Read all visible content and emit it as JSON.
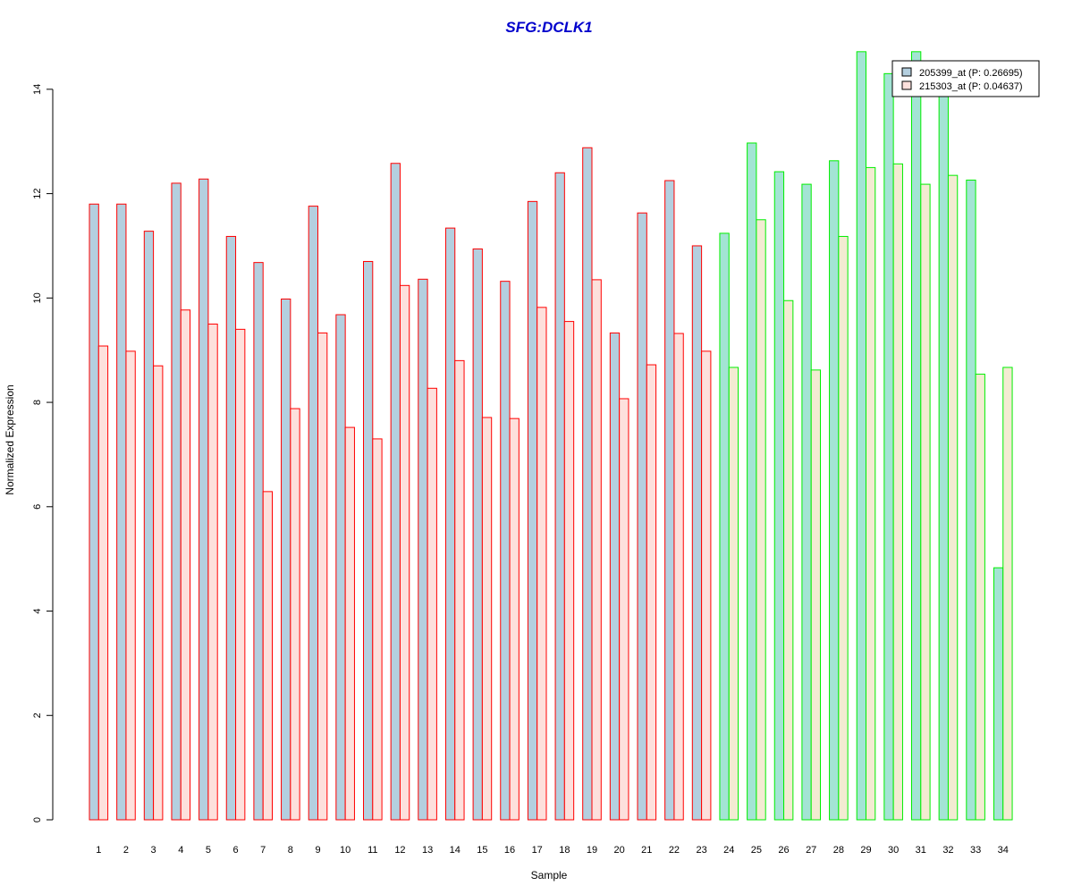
{
  "chart_data": {
    "type": "bar",
    "title": "SFG:DCLK1",
    "xlabel": "Sample",
    "ylabel": "Normalized Expression",
    "ylim": [
      0,
      14.7
    ],
    "yticks": [
      0,
      2,
      4,
      6,
      8,
      10,
      12,
      14
    ],
    "categories": [
      "1",
      "2",
      "3",
      "4",
      "5",
      "6",
      "7",
      "8",
      "9",
      "10",
      "11",
      "12",
      "13",
      "14",
      "15",
      "16",
      "17",
      "18",
      "19",
      "20",
      "21",
      "22",
      "23",
      "24",
      "25",
      "26",
      "27",
      "28",
      "29",
      "30",
      "31",
      "32",
      "33",
      "34"
    ],
    "group_split_after": 23,
    "series": [
      {
        "name": "205399_at (P: 0.26695)",
        "values": [
          11.8,
          11.8,
          11.28,
          12.2,
          12.28,
          11.18,
          10.68,
          9.98,
          11.76,
          9.68,
          10.7,
          12.58,
          10.36,
          11.34,
          10.94,
          10.32,
          11.85,
          12.4,
          12.88,
          9.33,
          11.63,
          12.25,
          11.0,
          11.24,
          12.97,
          12.42,
          12.18,
          12.63,
          14.72,
          14.3,
          14.72,
          14.0,
          12.26,
          4.83
        ]
      },
      {
        "name": "215303_at (P: 0.04637)",
        "values": [
          9.08,
          8.98,
          8.7,
          9.77,
          9.5,
          9.4,
          6.29,
          7.88,
          9.33,
          7.52,
          7.3,
          10.24,
          8.27,
          8.8,
          7.71,
          7.69,
          9.82,
          9.55,
          10.35,
          8.07,
          8.72,
          9.32,
          8.98,
          8.67,
          11.5,
          9.95,
          8.62,
          11.18,
          12.5,
          12.57,
          12.18,
          12.35,
          8.54,
          8.67
        ]
      }
    ],
    "colors": {
      "title": "#0000cc",
      "group1_outline": "#ff0000",
      "group2_outline": "#00ee00",
      "s1_fill_group1": "#b4cfdf",
      "s2_fill_group1": "#fde0dc",
      "s1_fill_group2": "#a3e4d4",
      "s2_fill_group2": "#f3ebd2",
      "legend_s1": "#b4cfdf",
      "legend_s2": "#fde0dc"
    },
    "legend_position": "top-right"
  }
}
